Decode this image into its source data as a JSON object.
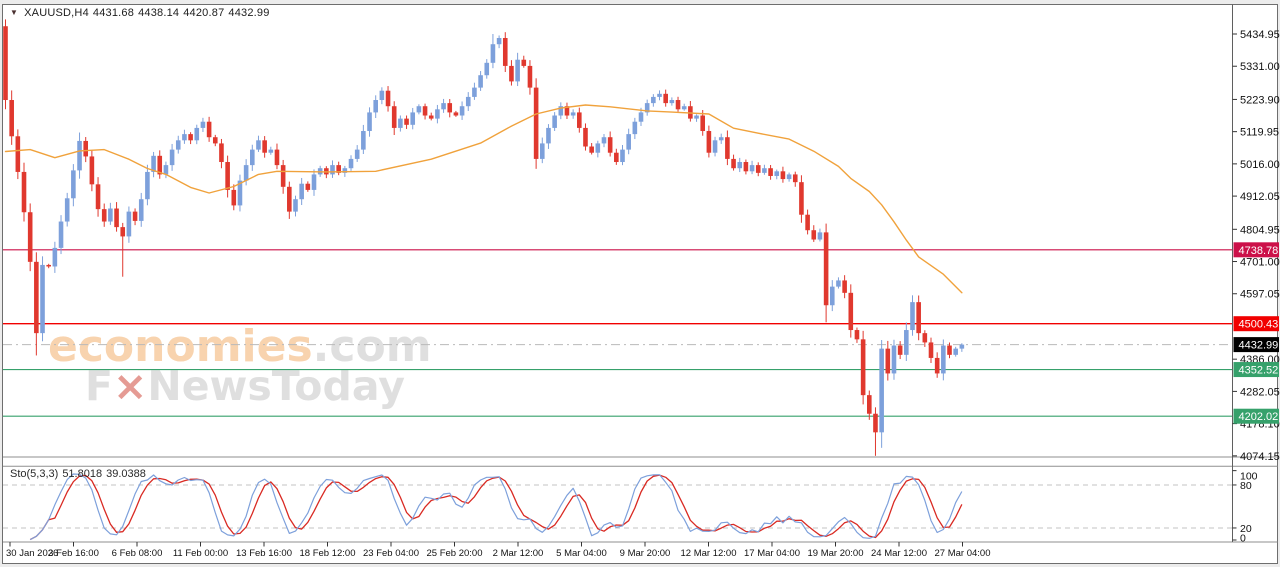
{
  "header": {
    "dropdown_icon": "▼",
    "symbol": "XAUUSD,H4",
    "open": "4431.68",
    "high": "4438.14",
    "low": "4420.87",
    "close": "4432.99"
  },
  "watermark": {
    "brand": "economies",
    "suffix": ".com",
    "line2_f": "F",
    "line2_x": "×",
    "line2_rest": "NewsToday"
  },
  "indicator": {
    "label": "Sto(5,3,3)",
    "value_main": "51.8018",
    "value_signal": "39.0388",
    "levels": [
      80,
      20
    ],
    "axis_labels": [
      "100",
      "80",
      "20",
      "0"
    ]
  },
  "chart_data": {
    "type": "candlestick",
    "symbol": "XAUUSD",
    "timeframe": "H4",
    "title": "XAUUSD,H4 4431.68 4438.14 4420.87 4432.99",
    "y_axis_ticks": [
      "5434.95",
      "5331.00",
      "5223.90",
      "5119.95",
      "5016.00",
      "4912.05",
      "4804.95",
      "4701.00",
      "4597.05",
      "4386.00",
      "4282.05",
      "4178.10",
      "4074.15"
    ],
    "x_axis_labels": [
      "30 Jan 2026",
      "3 Feb 16:00",
      "6 Feb 08:00",
      "11 Feb 00:00",
      "13 Feb 16:00",
      "18 Feb 12:00",
      "23 Feb 04:00",
      "25 Feb 20:00",
      "2 Mar 12:00",
      "5 Mar 04:00",
      "9 Mar 20:00",
      "12 Mar 12:00",
      "17 Mar 04:00",
      "19 Mar 20:00",
      "24 Mar 12:00",
      "27 Mar 04:00"
    ],
    "ylim": [
      4060,
      5520
    ],
    "lines": [
      {
        "price": 4738.78,
        "label": "4738.78",
        "color": "#cc1049",
        "label_bg": "#cc1049",
        "width": 1.2
      },
      {
        "price": 4500.43,
        "label": "4500.43",
        "color": "#f10000",
        "label_bg": "#f10000",
        "width": 1.4
      },
      {
        "price": 4432.99,
        "label": "4432.99",
        "color": "#b9b9b9",
        "label_bg": "#000000",
        "dash": "9 4 2 4",
        "width": 1
      },
      {
        "price": 4352.52,
        "label": "4352.52",
        "color": "#36a16b",
        "label_bg": "#36a16b",
        "width": 1.2
      },
      {
        "price": 4202.02,
        "label": "4202.02",
        "color": "#36a16b",
        "label_bg": "#36a16b",
        "width": 1.2
      }
    ],
    "candles": {
      "first_open": 5460,
      "closes": [
        5222,
        5105,
        4990,
        4860,
        4700,
        4470,
        4690,
        4685,
        4745,
        4830,
        4905,
        4995,
        5090,
        5040,
        4950,
        4870,
        4830,
        4872,
        4812,
        4782,
        4862,
        4832,
        4902,
        4990,
        5042,
        4982,
        5012,
        5062,
        5092,
        5112,
        5092,
        5132,
        5152,
        5102,
        5082,
        5022,
        4932,
        4882,
        4962,
        5012,
        5062,
        5092,
        5052,
        5062,
        5012,
        4942,
        4862,
        4902,
        4952,
        4932,
        4982,
        5002,
        4982,
        5012,
        4987,
        5002,
        5032,
        5062,
        5122,
        5182,
        5222,
        5252,
        5202,
        5132,
        5162,
        5142,
        5182,
        5202,
        5172,
        5162,
        5192,
        5212,
        5182,
        5172,
        5202,
        5232,
        5262,
        5302,
        5342,
        5402,
        5422,
        5332,
        5282,
        5352,
        5332,
        5262,
        5032,
        5082,
        5132,
        5172,
        5202,
        5172,
        5182,
        5132,
        5072,
        5052,
        5082,
        5102,
        5052,
        5022,
        5062,
        5112,
        5152,
        5182,
        5212,
        5232,
        5242,
        5212,
        5222,
        5192,
        5202,
        5162,
        5172,
        5122,
        5052,
        5092,
        5102,
        5032,
        5002,
        5022,
        4992,
        5012,
        4987,
        5002,
        4977,
        4992,
        4967,
        4982,
        4957,
        4852,
        4802,
        4772,
        4795,
        4560,
        4620,
        4640,
        4600,
        4480,
        4450,
        4270,
        4210,
        4150,
        4420,
        4340,
        4430,
        4400,
        4480,
        4570,
        4470,
        4440,
        4390,
        4340,
        4430,
        4400,
        4420,
        4432.99
      ],
      "spikes": [
        {
          "i": 0,
          "high": 5462
        },
        {
          "i": 5,
          "low": 4398
        },
        {
          "i": 19,
          "low": 4652
        },
        {
          "i": 79,
          "high": 5434.95
        },
        {
          "i": 86,
          "low": 5000
        },
        {
          "i": 133,
          "low": 4505
        },
        {
          "i": 141,
          "low": 4074.2
        },
        {
          "i": 142,
          "low": 4100
        },
        {
          "i": 147,
          "high": 4592
        }
      ]
    },
    "ma": {
      "period_hint": "moving-average",
      "points": [
        [
          0,
          5056
        ],
        [
          4,
          5062
        ],
        [
          8,
          5036
        ],
        [
          12,
          5058
        ],
        [
          16,
          5062
        ],
        [
          20,
          5031
        ],
        [
          23,
          5001
        ],
        [
          26,
          4982
        ],
        [
          30,
          4940
        ],
        [
          33,
          4922
        ],
        [
          37,
          4943
        ],
        [
          41,
          4982
        ],
        [
          44,
          4992
        ],
        [
          52,
          4990
        ],
        [
          60,
          4992
        ],
        [
          69,
          5031
        ],
        [
          77,
          5083
        ],
        [
          82,
          5138
        ],
        [
          86,
          5177
        ],
        [
          90,
          5196
        ],
        [
          94,
          5206
        ],
        [
          98,
          5200
        ],
        [
          104,
          5187
        ],
        [
          108,
          5183
        ],
        [
          114,
          5177
        ],
        [
          118,
          5131
        ],
        [
          122,
          5115
        ],
        [
          127,
          5096
        ],
        [
          131,
          5057
        ],
        [
          135,
          5008
        ],
        [
          137,
          4969
        ],
        [
          140,
          4927
        ],
        [
          142,
          4884
        ],
        [
          144,
          4829
        ],
        [
          146,
          4770
        ],
        [
          148,
          4716
        ],
        [
          152,
          4660
        ],
        [
          155,
          4600
        ]
      ]
    },
    "stochastic": {
      "label": "Sto(5,3,3)",
      "main": 51.8018,
      "signal": 39.0388,
      "levels": [
        80,
        20
      ],
      "range": [
        0,
        100
      ]
    },
    "colors": {
      "bull": "#7da0db",
      "bear": "#e0382e",
      "ma": "#f0a23c",
      "stoch_k": "#7da0db",
      "stoch_d": "#d92a23",
      "watermark_orange": "#f8d3ae",
      "watermark_gray": "#dfdfdf",
      "watermark_x": "#e59b94",
      "axis_text": "#111111",
      "frame": "#6e6e6e",
      "level_dash": "#c3c3c3"
    }
  }
}
